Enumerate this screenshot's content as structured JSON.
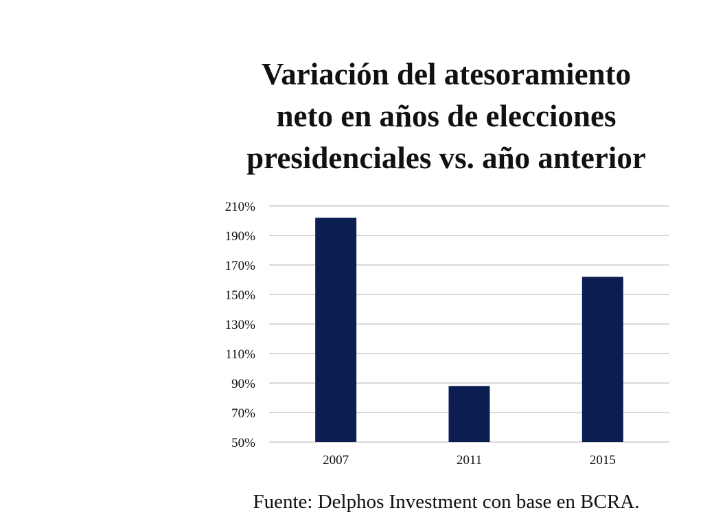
{
  "chart_data": {
    "type": "bar",
    "title_lines": [
      "Variación del atesoramiento",
      "neto en años de elecciones",
      "presidenciales vs. año anterior"
    ],
    "categories": [
      "2007",
      "2011",
      "2015"
    ],
    "values": [
      202,
      88,
      162
    ],
    "ylim": [
      50,
      210
    ],
    "yticks": [
      210,
      190,
      170,
      150,
      130,
      110,
      90,
      70,
      50
    ],
    "ytick_suffix": "%",
    "grid": true,
    "bar_color": "#0b1d51",
    "grid_color": "#d9d9d9",
    "source": "Fuente: Delphos Investment con base en BCRA."
  }
}
